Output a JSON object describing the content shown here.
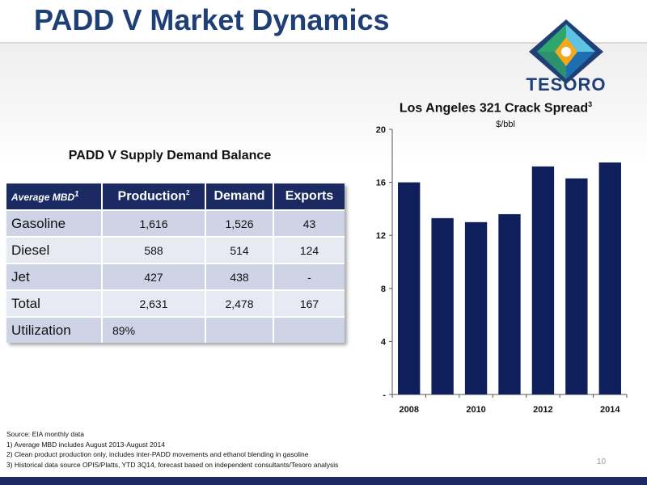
{
  "slide": {
    "title": "PADD V Market Dynamics",
    "page_number": "10"
  },
  "logo": {
    "word": "TESORO",
    "colors": [
      "#1f3f77",
      "#2fa66d",
      "#f5a81c",
      "#5ec3e0"
    ]
  },
  "table": {
    "title": "PADD V Supply Demand Balance",
    "headers": [
      {
        "label": "Average MBD",
        "sup": "1"
      },
      {
        "label": "Production",
        "sup": "2"
      },
      {
        "label": "Demand",
        "sup": ""
      },
      {
        "label": "Exports",
        "sup": ""
      }
    ],
    "rows": [
      {
        "label": "Gasoline",
        "production": "1,616",
        "demand": "1,526",
        "exports": "43"
      },
      {
        "label": "Diesel",
        "production": "588",
        "demand": "514",
        "exports": "124"
      },
      {
        "label": "Jet",
        "production": "427",
        "demand": "438",
        "exports": "-"
      },
      {
        "label": "Total",
        "production": "2,631",
        "demand": "2,478",
        "exports": "167"
      },
      {
        "label": "Utilization",
        "production": "89%",
        "demand": "",
        "exports": ""
      }
    ],
    "colors": {
      "header": "#1b2a63",
      "row_dark": "#cfd3e6",
      "row_light": "#e8eaf3"
    }
  },
  "chart": {
    "title": "Los Angeles 321 Crack Spread",
    "title_sup": "3",
    "unit": "$/bbl"
  },
  "chart_data": {
    "type": "bar",
    "title": "Los Angeles 321 Crack Spread",
    "ylabel": "$/bbl",
    "categories": [
      "2008",
      "2009",
      "2010",
      "2011",
      "2012",
      "2013",
      "2014"
    ],
    "x_tick_labels": [
      "2008",
      "",
      "2010",
      "",
      "2012",
      "",
      "2014"
    ],
    "values": [
      16.0,
      13.3,
      13.0,
      13.6,
      17.2,
      16.3,
      17.5
    ],
    "ylim": [
      0,
      20
    ],
    "yticks": [
      0,
      4,
      8,
      12,
      16,
      20
    ],
    "ytick_labels": [
      "-",
      "4",
      "8",
      "12",
      "16",
      "20"
    ],
    "bar_color": "#0e1f5c",
    "grid": false
  },
  "notes": [
    "Source: EIA monthly data",
    "1) Average MBD includes August 2013-August 2014",
    "2) Clean product production only, includes inter-PADD movements and ethanol blending in gasoline",
    "3) Historical data source OPIS/Platts, YTD 3Q14, forecast based on independent consultants/Tesoro analysis"
  ]
}
